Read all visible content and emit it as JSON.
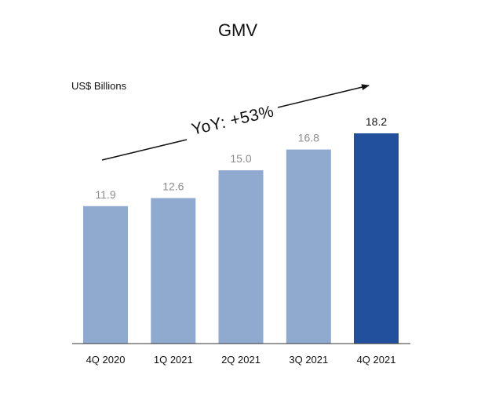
{
  "chart_data": {
    "type": "bar",
    "title": "GMV",
    "unit_label": "US$ Billions",
    "categories": [
      "4Q 2020",
      "1Q 2021",
      "2Q 2021",
      "3Q 2021",
      "4Q 2021"
    ],
    "values": [
      11.9,
      12.6,
      15.0,
      16.8,
      18.2
    ],
    "value_labels": [
      "11.9",
      "12.6",
      "15.0",
      "16.8",
      "18.2"
    ],
    "highlight_index": 4,
    "ylim": [
      0,
      18.2
    ],
    "grid": false,
    "colors": {
      "bar": "#8fa9cf",
      "highlight": "#22509c",
      "axis": "#333333"
    },
    "annotation": {
      "text": "YoY: +53%",
      "style": "arrow"
    }
  }
}
